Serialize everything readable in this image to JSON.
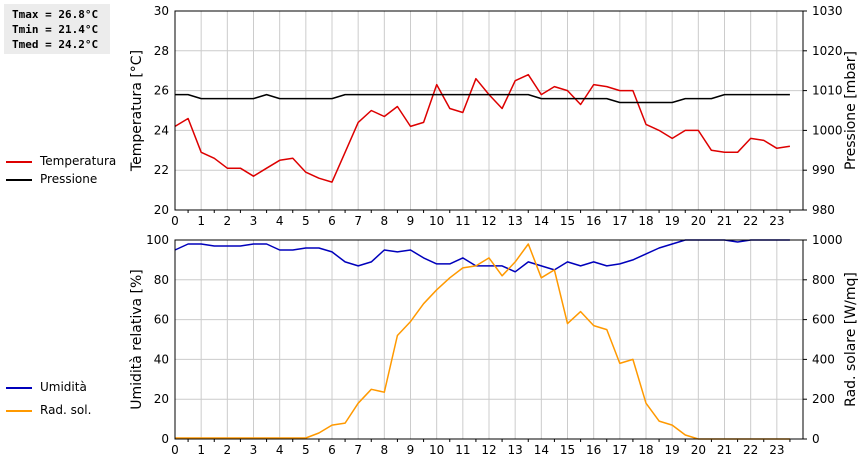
{
  "stats": {
    "tmax": "Tmax = 26.8°C",
    "tmin": "Tmin = 21.4°C",
    "tmed": "Tmed = 24.2°C"
  },
  "legend_top": [
    {
      "label": "Temperatura",
      "color": "#dd0000"
    },
    {
      "label": "Pressione",
      "color": "#000000"
    }
  ],
  "legend_bottom": [
    {
      "label": "Umidità",
      "color": "#0000bb"
    },
    {
      "label": "Rad. sol.",
      "color": "#ff9900"
    }
  ],
  "chart_data": [
    {
      "type": "line",
      "ylabel": "Temperatura [°C]",
      "ylabel_right": "Pressione [mbar]",
      "xlim": [
        0,
        24
      ],
      "xticks": [
        "0",
        "1",
        "2",
        "3",
        "4",
        "5",
        "6",
        "7",
        "8",
        "9",
        "10",
        "11",
        "12",
        "13",
        "14",
        "15",
        "16",
        "17",
        "18",
        "19",
        "20",
        "21",
        "22",
        "23"
      ],
      "ylim": [
        20,
        30
      ],
      "yticks": [
        "20",
        "22",
        "24",
        "26",
        "28",
        "30"
      ],
      "ylim_right": [
        980,
        1030
      ],
      "yticks_right": [
        "980",
        "990",
        "1000",
        "1010",
        "1020",
        "1030"
      ],
      "grid": true,
      "series": [
        {
          "name": "Temperatura",
          "axis": "left",
          "color": "#dd0000",
          "x": [
            0,
            0.5,
            1,
            1.5,
            2,
            2.5,
            3,
            3.5,
            4,
            4.5,
            5,
            5.5,
            6,
            6.5,
            7,
            7.5,
            8,
            8.5,
            9,
            9.5,
            10,
            10.5,
            11,
            11.5,
            12,
            12.5,
            13,
            13.5,
            14,
            14.5,
            15,
            15.5,
            16,
            16.5,
            17,
            17.5,
            18,
            18.5,
            19,
            19.5,
            20,
            20.5,
            21,
            21.5,
            22,
            22.5,
            23,
            23.5
          ],
          "y": [
            24.2,
            24.6,
            22.9,
            22.6,
            22.1,
            22.1,
            21.7,
            22.1,
            22.5,
            22.6,
            21.9,
            21.6,
            21.4,
            22.9,
            24.4,
            25.0,
            24.7,
            25.2,
            24.2,
            24.4,
            26.3,
            25.1,
            24.9,
            26.6,
            25.8,
            25.1,
            26.5,
            26.8,
            25.8,
            26.2,
            26.0,
            25.3,
            26.3,
            26.2,
            26.0,
            26.0,
            24.3,
            24.0,
            23.6,
            24.0,
            24.0,
            23.0,
            22.9,
            22.9,
            23.6,
            23.5,
            23.1,
            23.2
          ]
        },
        {
          "name": "Pressione",
          "axis": "right",
          "color": "#000000",
          "x": [
            0,
            0.5,
            1,
            1.5,
            2,
            2.5,
            3,
            3.5,
            4,
            4.5,
            5,
            5.5,
            6,
            6.5,
            7,
            7.5,
            8,
            8.5,
            9,
            9.5,
            10,
            10.5,
            11,
            11.5,
            12,
            12.5,
            13,
            13.5,
            14,
            14.5,
            15,
            15.5,
            16,
            16.5,
            17,
            17.5,
            18,
            18.5,
            19,
            19.5,
            20,
            20.5,
            21,
            21.5,
            22,
            22.5,
            23,
            23.5
          ],
          "y": [
            1009,
            1009,
            1008,
            1008,
            1008,
            1008,
            1008,
            1009,
            1008,
            1008,
            1008,
            1008,
            1008,
            1009,
            1009,
            1009,
            1009,
            1009,
            1009,
            1009,
            1009,
            1009,
            1009,
            1009,
            1009,
            1009,
            1009,
            1009,
            1008,
            1008,
            1008,
            1008,
            1008,
            1008,
            1007,
            1007,
            1007,
            1007,
            1007,
            1008,
            1008,
            1008,
            1009,
            1009,
            1009,
            1009,
            1009,
            1009
          ]
        }
      ]
    },
    {
      "type": "line",
      "ylabel": "Umidità relativa [%]",
      "ylabel_right": "Rad. solare [W/mq]",
      "xlim": [
        0,
        24
      ],
      "xticks": [
        "0",
        "1",
        "2",
        "3",
        "4",
        "5",
        "6",
        "7",
        "8",
        "9",
        "10",
        "11",
        "12",
        "13",
        "14",
        "15",
        "16",
        "17",
        "18",
        "19",
        "20",
        "21",
        "22",
        "23"
      ],
      "ylim": [
        0,
        100
      ],
      "yticks": [
        "0",
        "20",
        "40",
        "60",
        "80",
        "100"
      ],
      "ylim_right": [
        0,
        1000
      ],
      "yticks_right": [
        "0",
        "200",
        "400",
        "600",
        "800",
        "1000"
      ],
      "grid": true,
      "series": [
        {
          "name": "Umidità",
          "axis": "left",
          "color": "#0000bb",
          "x": [
            0,
            0.5,
            1,
            1.5,
            2,
            2.5,
            3,
            3.5,
            4,
            4.5,
            5,
            5.5,
            6,
            6.5,
            7,
            7.5,
            8,
            8.5,
            9,
            9.5,
            10,
            10.5,
            11,
            11.5,
            12,
            12.5,
            13,
            13.5,
            14,
            14.5,
            15,
            15.5,
            16,
            16.5,
            17,
            17.5,
            18,
            18.5,
            19,
            19.5,
            20,
            20.5,
            21,
            21.5,
            22,
            22.5,
            23,
            23.5
          ],
          "y": [
            95,
            98,
            98,
            97,
            97,
            97,
            98,
            98,
            95,
            95,
            96,
            96,
            94,
            89,
            87,
            89,
            95,
            94,
            95,
            91,
            88,
            88,
            91,
            87,
            87,
            87,
            84,
            89,
            87,
            85,
            89,
            87,
            89,
            87,
            88,
            90,
            93,
            96,
            98,
            100,
            100,
            100,
            100,
            99,
            100,
            100,
            100,
            100
          ]
        },
        {
          "name": "Rad. sol.",
          "axis": "right",
          "color": "#ff9900",
          "x": [
            0,
            0.5,
            1,
            1.5,
            2,
            2.5,
            3,
            3.5,
            4,
            4.5,
            5,
            5.5,
            6,
            6.5,
            7,
            7.5,
            8,
            8.5,
            9,
            9.5,
            10,
            10.5,
            11,
            11.5,
            12,
            12.5,
            13,
            13.5,
            14,
            14.5,
            15,
            15.5,
            16,
            16.5,
            17,
            17.5,
            18,
            18.5,
            19,
            19.5,
            20,
            20.5,
            21,
            21.5,
            22,
            22.5,
            23,
            23.5
          ],
          "y": [
            5,
            5,
            5,
            5,
            5,
            5,
            5,
            5,
            5,
            5,
            5,
            30,
            70,
            80,
            180,
            250,
            235,
            520,
            590,
            680,
            750,
            810,
            860,
            870,
            910,
            820,
            890,
            980,
            810,
            850,
            580,
            640,
            570,
            550,
            380,
            400,
            180,
            90,
            70,
            20,
            0,
            0,
            0,
            0,
            0,
            0,
            0,
            0
          ]
        }
      ]
    }
  ]
}
